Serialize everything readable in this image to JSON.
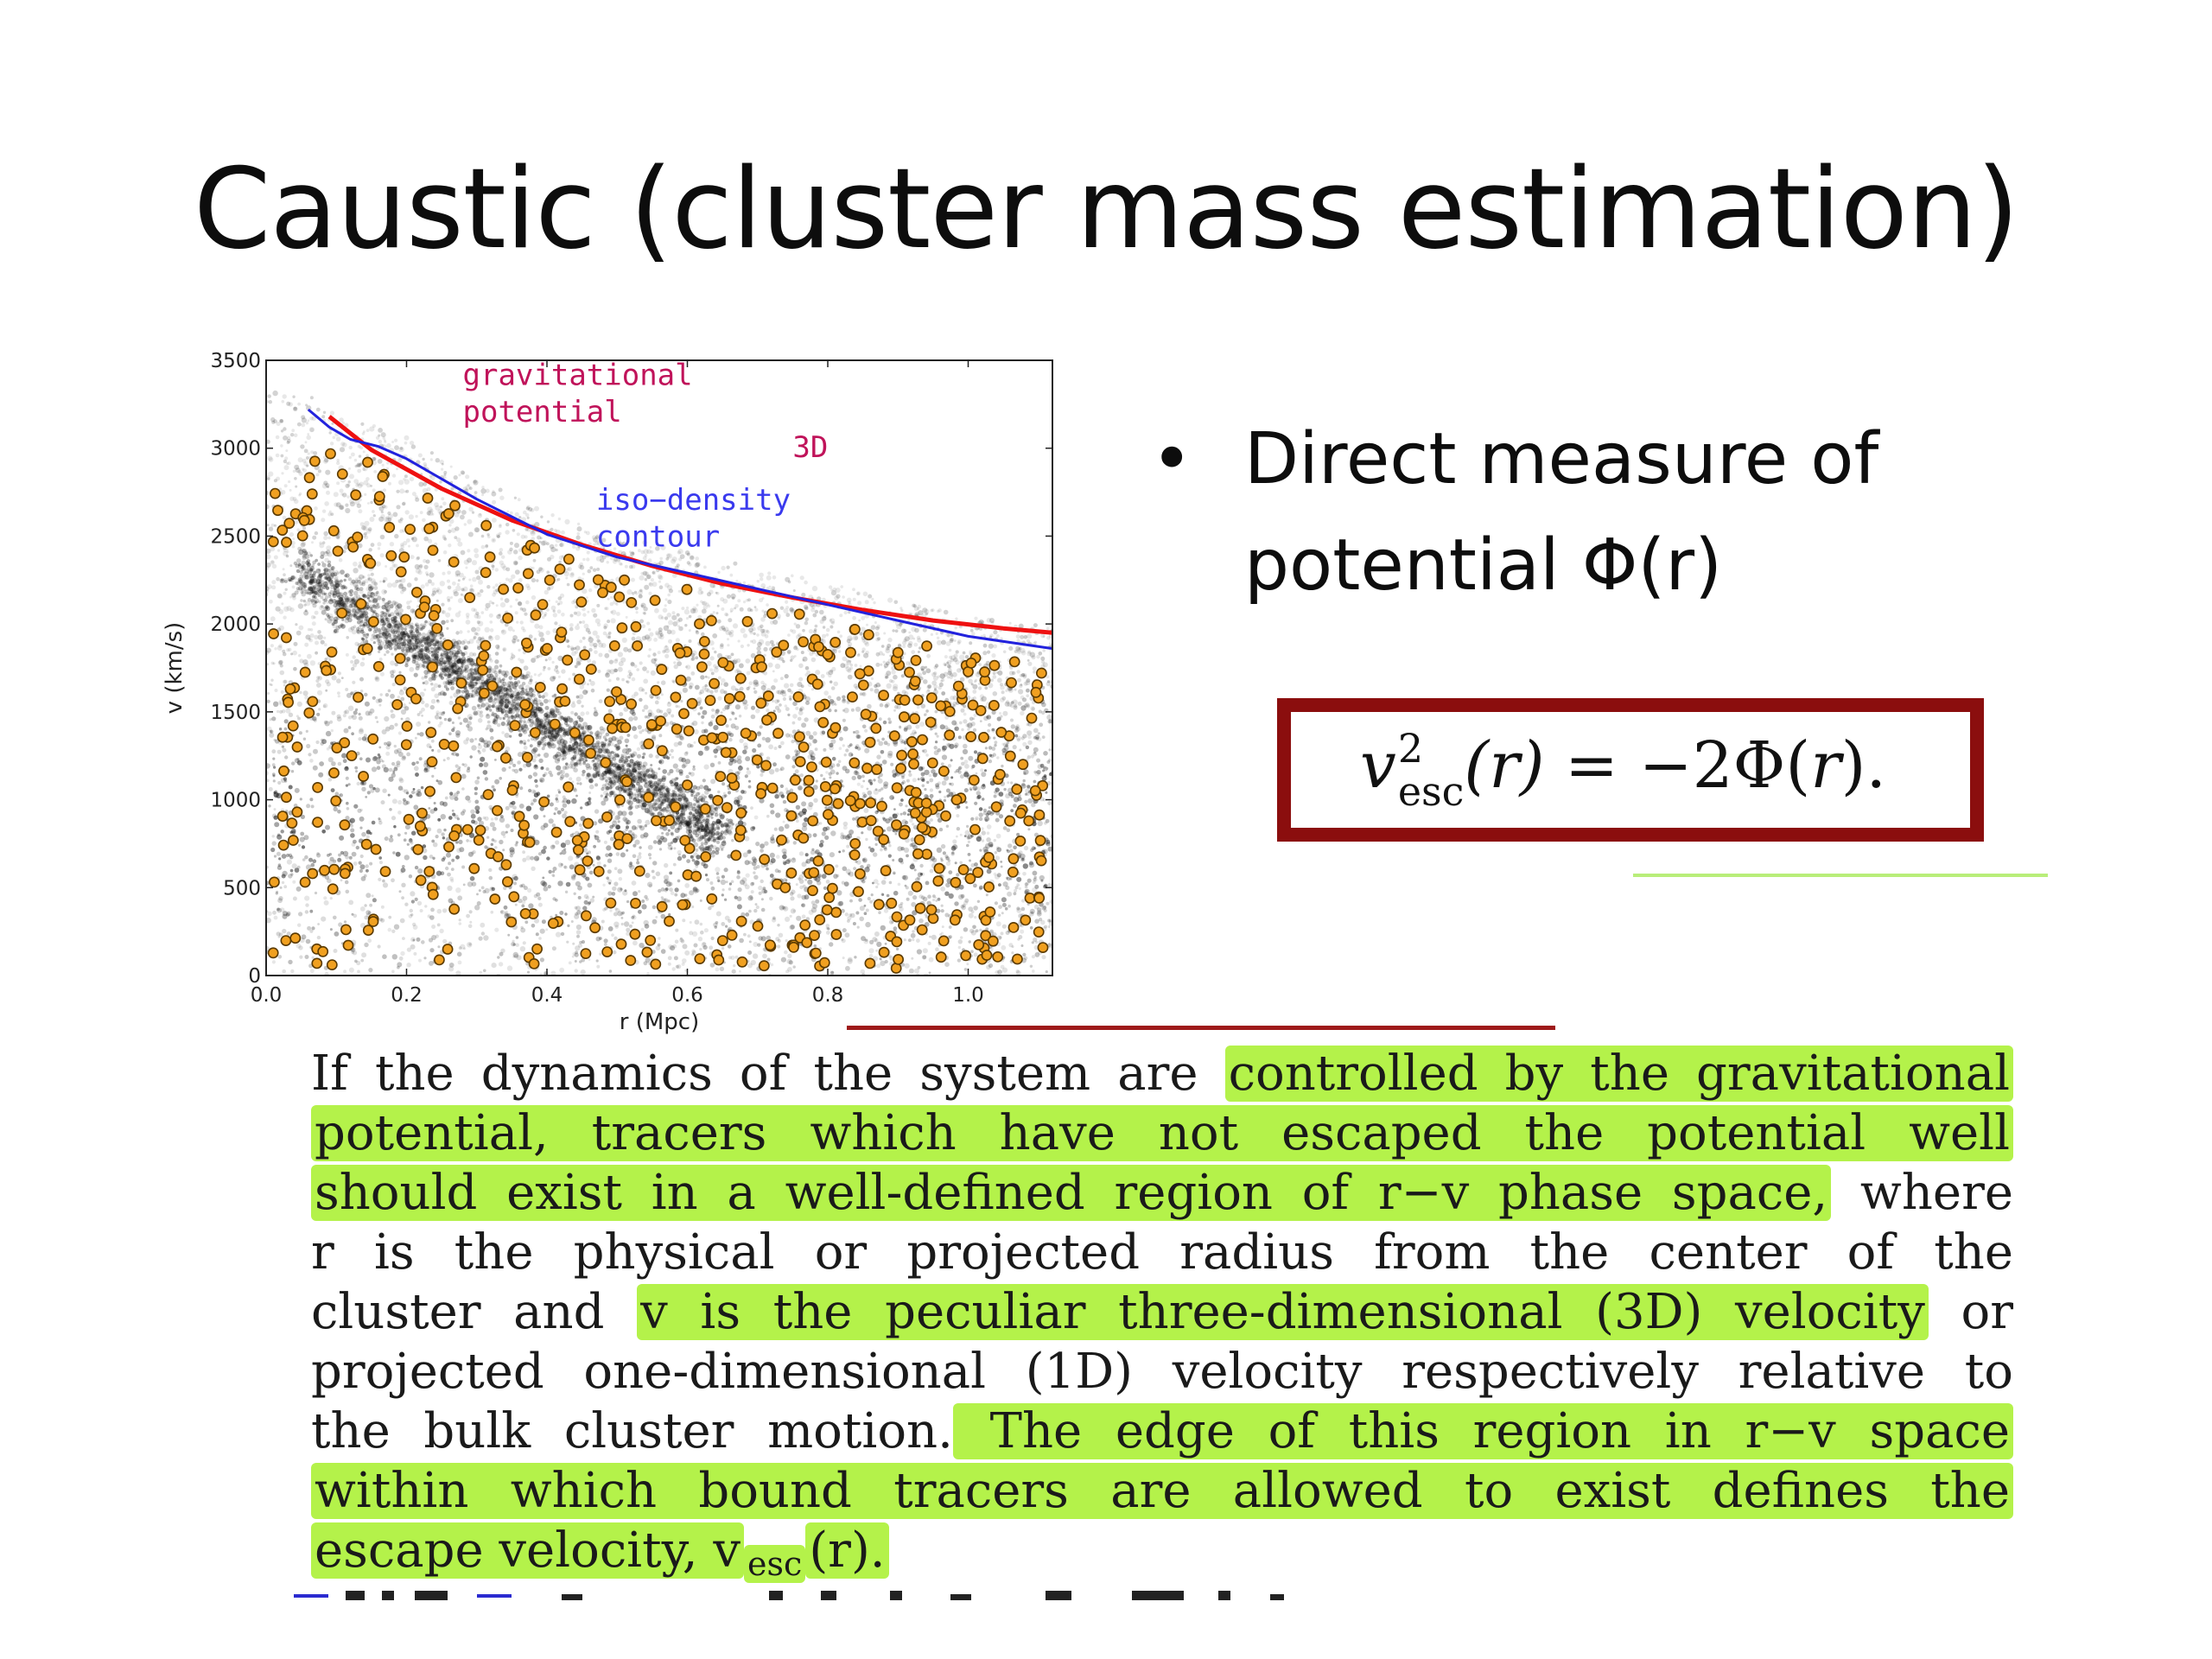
{
  "slide": {
    "title": "Caustic (cluster mass estimation)",
    "bullet": "Direct measure of potential Φ(r)",
    "bullet_symbol": "•"
  },
  "equation": {
    "lhs_symbol": "v",
    "lhs_sup": "2",
    "lhs_sub": "esc",
    "lhs_arg": "(r)",
    "rhs": " = −2Φ(",
    "rhs_var": "r",
    "rhs_end": ")."
  },
  "excerpt": {
    "lines": [
      [
        {
          "t": "If the dynamics of the system are ",
          "hl": false
        },
        {
          "t": "controlled by the gravitational",
          "hl": true
        }
      ],
      [
        {
          "t": "potential, tracers which have not escaped the potential well",
          "hl": true
        }
      ],
      [
        {
          "t": "should exist in a well-defined region of r−v phase space,",
          "hl": true
        },
        {
          "t": " where",
          "hl": false
        }
      ],
      [
        {
          "t": "r is the physical or projected radius from the center of the",
          "hl": false
        }
      ],
      [
        {
          "t": "cluster and ",
          "hl": false
        },
        {
          "t": "v is the peculiar three-dimensional (3D) velocity",
          "hl": true
        },
        {
          "t": " or",
          "hl": false
        }
      ],
      [
        {
          "t": "projected one-dimensional (1D) velocity respectively relative to",
          "hl": false
        }
      ],
      [
        {
          "t": "the bulk cluster motion.",
          "hl": false
        },
        {
          "t": " The edge of this region in r−v space",
          "hl": true
        }
      ],
      [
        {
          "t": "within which bound tracers are allowed to exist defines the",
          "hl": true
        }
      ],
      [
        {
          "t": "escape velocity, v",
          "hl": true
        },
        {
          "t": "esc",
          "hl": true,
          "sub": true
        },
        {
          "t": "(r).",
          "hl": true
        }
      ]
    ]
  },
  "chart_data": {
    "type": "scatter",
    "xlabel": "r (Mpc)",
    "ylabel": "v (km/s)",
    "xlim": [
      0.0,
      1.12
    ],
    "ylim": [
      0,
      3500
    ],
    "xticks": [
      0.0,
      0.2,
      0.4,
      0.6,
      0.8,
      1.0
    ],
    "xtick_labels": [
      "0.0",
      "0.2",
      "0.4",
      "0.6",
      "0.8",
      "1.0"
    ],
    "yticks": [
      0,
      500,
      1000,
      1500,
      2000,
      2500,
      3000,
      3500
    ],
    "ytick_labels": [
      "0",
      "500",
      "1000",
      "1500",
      "2000",
      "2500",
      "3000",
      "3500"
    ],
    "grid": false,
    "annotations": [
      {
        "text": "gravitational",
        "color": "#c0135a",
        "x": 0.28,
        "y": 3360
      },
      {
        "text": "potential",
        "color": "#c0135a",
        "x": 0.28,
        "y": 3150
      },
      {
        "text": "3D",
        "color": "#c0135a",
        "x": 0.75,
        "y": 2950
      },
      {
        "text": "iso−density",
        "color": "#3a3aee",
        "x": 0.47,
        "y": 2650
      },
      {
        "text": "contour",
        "color": "#3a3aee",
        "x": 0.47,
        "y": 2440
      }
    ],
    "series": [
      {
        "kind": "line",
        "color": "#ee1111",
        "width": 5,
        "x": [
          0.09,
          0.15,
          0.25,
          0.35,
          0.45,
          0.55,
          0.65,
          0.75,
          0.85,
          0.95,
          1.05,
          1.12
        ],
        "y": [
          3180,
          2990,
          2770,
          2590,
          2450,
          2330,
          2230,
          2150,
          2080,
          2020,
          1975,
          1950
        ]
      },
      {
        "kind": "line",
        "color": "#2222dd",
        "width": 3,
        "x": [
          0.06,
          0.09,
          0.12,
          0.16,
          0.2,
          0.3,
          0.4,
          0.5,
          0.6,
          0.7,
          0.8,
          0.9,
          1.0,
          1.12
        ],
        "y": [
          3220,
          3120,
          3050,
          3010,
          2940,
          2710,
          2510,
          2380,
          2290,
          2200,
          2110,
          2020,
          1930,
          1860
        ]
      },
      {
        "kind": "density",
        "color": "#111111",
        "description_x": [
          0.0,
          1.12
        ],
        "description_y": [
          0,
          3200
        ]
      },
      {
        "kind": "points",
        "color": "#f0a020",
        "edgecolor": "#5a3a00",
        "count": 620,
        "x_range": [
          0.0,
          1.12
        ],
        "y_range": [
          0,
          3000
        ]
      }
    ]
  }
}
